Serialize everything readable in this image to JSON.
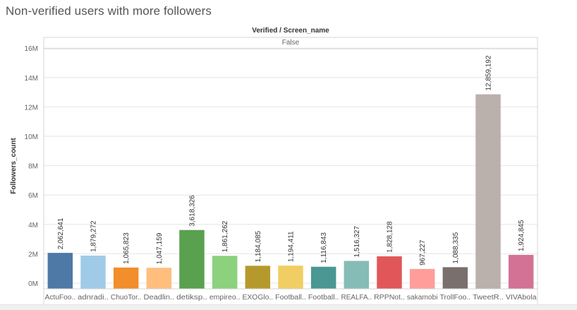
{
  "page": {
    "title": "Non-verified users with more followers"
  },
  "header": {
    "title": "Verified / Screen_name",
    "facet": "False"
  },
  "colors": {
    "grid": "#e6e6e6",
    "axis_text": "#666666",
    "label_text": "#333333",
    "bars": [
      "#4e79a7",
      "#a0cbe8",
      "#f28e2b",
      "#ffbe7d",
      "#59a14f",
      "#8cd17d",
      "#b6992d",
      "#f1ce63",
      "#499894",
      "#86bcb6",
      "#e15759",
      "#ff9d9a",
      "#79706e",
      "#bab0ac",
      "#d37295"
    ]
  },
  "chart_data": {
    "type": "bar",
    "title": "",
    "xlabel": "",
    "ylabel": "Followers_count",
    "ylim": [
      0,
      16500000
    ],
    "y_ticks": [
      0,
      2000000,
      4000000,
      6000000,
      8000000,
      10000000,
      12000000,
      14000000,
      16000000
    ],
    "y_tick_labels": [
      "0M",
      "2M",
      "4M",
      "6M",
      "8M",
      "10M",
      "12M",
      "14M",
      "16M"
    ],
    "grid": true,
    "categories": [
      "ActuFoo..",
      "adnradi..",
      "ChuoTor..",
      "Deadlin..",
      "detiksp..",
      "empireo..",
      "EXOGlo..",
      "Football..",
      "Football..",
      "REALFA..",
      "RPPNot..",
      "sakamobi",
      "TrollFoo..",
      "TweetR..",
      "VIVAbola"
    ],
    "values": [
      2062641,
      1879272,
      1065823,
      1047159,
      3618326,
      1861262,
      1184085,
      1194411,
      1116843,
      1516327,
      1828128,
      967227,
      1088335,
      12859192,
      1924845
    ],
    "value_labels": [
      "2,062,641",
      "1,879,272",
      "1,065,823",
      "1,047,159",
      "3,618,326",
      "1,861,262",
      "1,184,085",
      "1,194,411",
      "1,116,843",
      "1,516,327",
      "1,828,128",
      "967,227",
      "1,088,335",
      "12,859,192",
      "1,924,845"
    ]
  }
}
